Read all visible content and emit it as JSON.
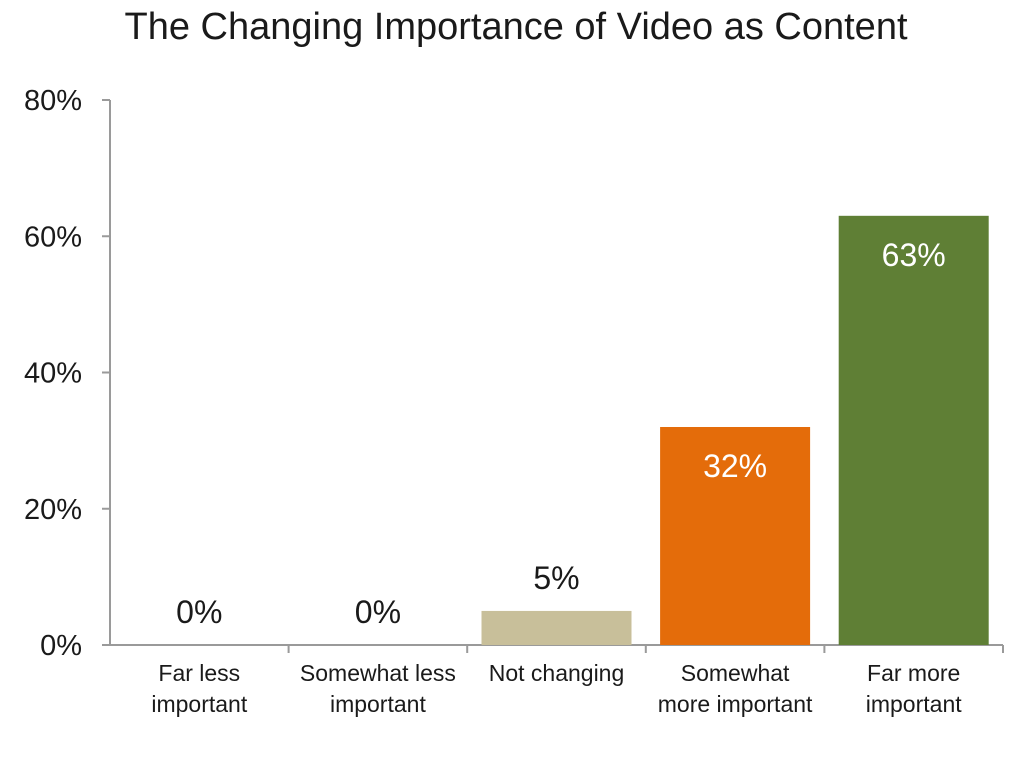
{
  "chart_data": {
    "type": "bar",
    "title": "The Changing Importance of Video as Content",
    "xlabel": "",
    "ylabel": "",
    "ylim": [
      0,
      80
    ],
    "yticks": [
      "0%",
      "20%",
      "40%",
      "60%",
      "80%"
    ],
    "grid": false,
    "categories": [
      [
        "Far less",
        "important"
      ],
      [
        "Somewhat less",
        "important"
      ],
      [
        "Not changing"
      ],
      [
        "Somewhat",
        "more important"
      ],
      [
        "Far more",
        "important"
      ]
    ],
    "values": [
      0,
      0,
      5,
      32,
      63
    ],
    "labels": [
      "0%",
      "0%",
      "5%",
      "32%",
      "63%"
    ],
    "colors": [
      "#c8bf9a",
      "#c8bf9a",
      "#c8bf9a",
      "#e46c0a",
      "#5f7f35"
    ],
    "label_colors": [
      "#1a1a1a",
      "#1a1a1a",
      "#1a1a1a",
      "#ffffff",
      "#ffffff"
    ],
    "label_position": [
      "above",
      "above",
      "above",
      "inside",
      "inside"
    ]
  }
}
